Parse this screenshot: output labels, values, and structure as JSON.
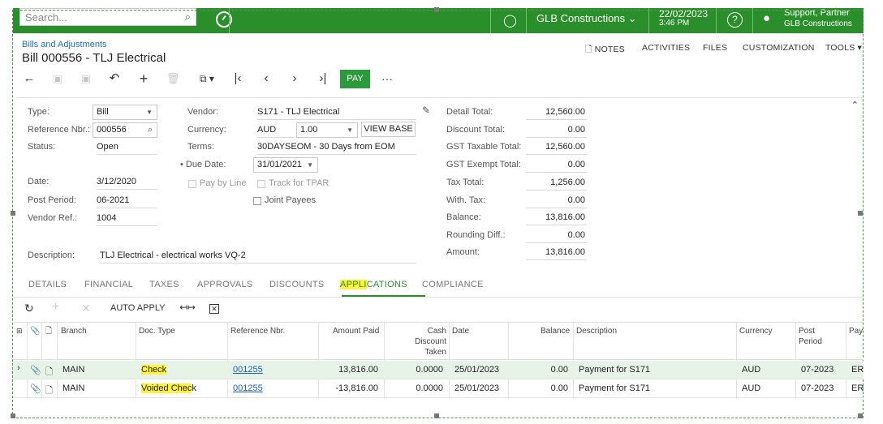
{
  "topbar": {
    "search_placeholder": "Search...",
    "company": "GLB Constructions",
    "date": "22/02/2023",
    "time": "3:46 PM",
    "user_name": "Support, Partner",
    "user_company": "GLB Constructions"
  },
  "header": {
    "breadcrumb": "Bills and Adjustments",
    "title": "Bill 000556 - TLJ Electrical",
    "links": [
      "NOTES",
      "ACTIVITIES",
      "FILES",
      "CUSTOMIZATION",
      "TOOLS"
    ]
  },
  "toolbar": {
    "pay_label": "PAY",
    "more": "···"
  },
  "form": {
    "type_label": "Type:",
    "type_value": "Bill",
    "refnbr_label": "Reference Nbr.:",
    "refnbr_value": "000556",
    "status_label": "Status:",
    "status_value": "Open",
    "date_label": "Date:",
    "date_value": "3/12/2020",
    "period_label": "Post Period:",
    "period_value": "06-2021",
    "vendorref_label": "Vendor Ref.:",
    "vendorref_value": "1004",
    "description_label": "Description:",
    "description_value": "TLJ Electrical - electrical works VQ-2",
    "vendor_label": "Vendor:",
    "vendor_value": "S171 - TLJ Electrical",
    "currency_label": "Currency:",
    "currency_value": "AUD",
    "rate_value": "1.00",
    "view_base": "VIEW BASE",
    "terms_label": "Terms:",
    "terms_value": "30DAYSEOM - 30 Days from EOM",
    "duedate_label": "Due Date:",
    "duedate_value": "31/01/2021",
    "pay_by_line": "Pay by Line",
    "track_tpar": "Track for TPAR",
    "joint_payees": "Joint Payees"
  },
  "totals": [
    {
      "label": "Detail Total:",
      "value": "12,560.00"
    },
    {
      "label": "Discount Total:",
      "value": "0.00"
    },
    {
      "label": "GST Taxable Total:",
      "value": "12,560.00"
    },
    {
      "label": "GST Exempt Total:",
      "value": "0.00"
    },
    {
      "label": "Tax Total:",
      "value": "1,256.00"
    },
    {
      "label": "With. Tax:",
      "value": "0.00"
    },
    {
      "label": "Balance:",
      "value": "13,816.00"
    },
    {
      "label": "Rounding Diff.:",
      "value": "0.00"
    },
    {
      "label": "Amount:",
      "value": "13,816.00"
    }
  ],
  "tabs": {
    "details": "DETAILS",
    "financial": "FINANCIAL",
    "taxes": "TAXES",
    "approvals": "APPROVALS",
    "discounts": "DISCOUNTS",
    "applications_hl": "APPLI",
    "applications_rest": "CATIONS",
    "compliance": "COMPLIANCE"
  },
  "grid_toolbar": {
    "auto_apply": "AUTO APPLY"
  },
  "grid": {
    "columns": {
      "branch": "Branch",
      "doc_type": "Doc. Type",
      "ref_nbr": "Reference Nbr.",
      "amount_paid": "Amount Paid",
      "cash_discount_1": "Cash",
      "cash_discount_2": "Discount",
      "cash_discount_3": "Taken",
      "date": "Date",
      "balance": "Balance",
      "description": "Description",
      "currency": "Currency",
      "post_period_1": "Post",
      "post_period_2": "Period",
      "pay": "Pay"
    },
    "rows": [
      {
        "branch": "MAIN",
        "doc_type": "Check",
        "ref_nbr": "001255",
        "amount_paid": "13,816.00",
        "cash_discount": "0.0000",
        "date": "25/01/2023",
        "balance": "0.00",
        "description": "Payment for S171",
        "currency": "AUD",
        "post_period": "07-2023",
        "pay": "ER"
      },
      {
        "branch": "MAIN",
        "doc_type_hl": "Voided Chec",
        "doc_type_rest": "k",
        "ref_nbr": "001255",
        "amount_paid": "-13,816.00",
        "cash_discount": "0.0000",
        "date": "25/01/2023",
        "balance": "0.00",
        "description": "Payment for S171",
        "currency": "AUD",
        "post_period": "07-2023",
        "pay": "ER"
      }
    ]
  },
  "colors": {
    "brand_green": "#2a8e2a",
    "highlight": "#fff23a",
    "link": "#1a5fbf"
  }
}
